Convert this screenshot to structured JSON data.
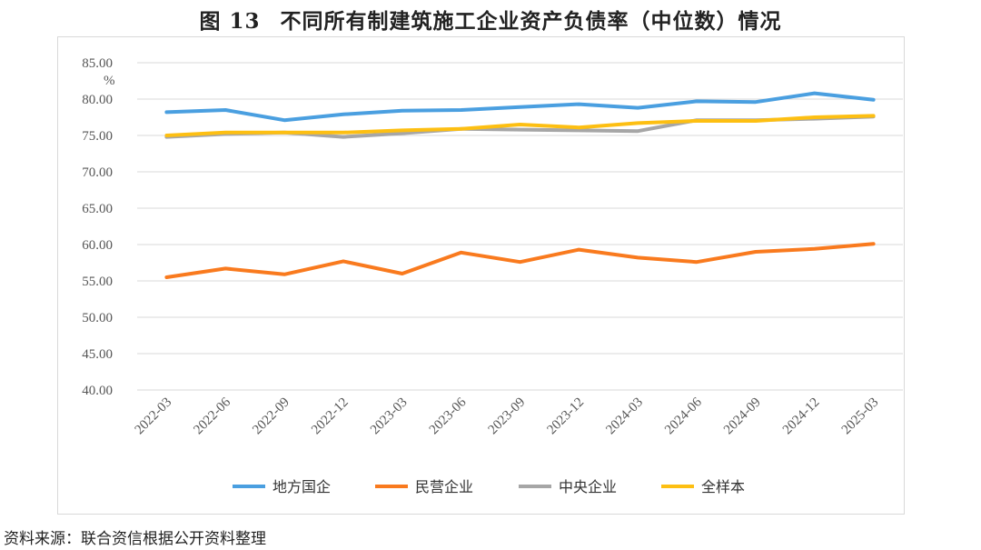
{
  "figure": {
    "number": "图 13",
    "title": "不同所有制建筑施工企业资产负债率（中位数）情况"
  },
  "source": "资料来源：联合资信根据公开资料整理",
  "chart_data": {
    "type": "line",
    "title": "",
    "xlabel": "",
    "ylabel": "%",
    "ylim": [
      40,
      85
    ],
    "yticks": [
      "85.00",
      "80.00",
      "75.00",
      "70.00",
      "65.00",
      "60.00",
      "55.00",
      "50.00",
      "45.00",
      "40.00"
    ],
    "grid": "horizontal",
    "legend": "bottom",
    "categories": [
      "2022-03",
      "2022-06",
      "2022-09",
      "2022-12",
      "2023-03",
      "2023-06",
      "2023-09",
      "2023-12",
      "2024-03",
      "2024-06",
      "2024-09",
      "2024-12",
      "2025-03"
    ],
    "series": [
      {
        "name": "地方国企",
        "color": "#4a9fe0",
        "values": [
          78.2,
          78.5,
          77.1,
          77.9,
          78.4,
          78.5,
          78.9,
          79.3,
          78.8,
          79.7,
          79.6,
          80.8,
          79.9
        ]
      },
      {
        "name": "民营企业",
        "color": "#f97a1e",
        "values": [
          55.5,
          56.7,
          55.9,
          57.7,
          56.0,
          58.9,
          57.6,
          59.3,
          58.2,
          57.6,
          59.0,
          59.4,
          60.1
        ]
      },
      {
        "name": "中央企业",
        "color": "#a6a6a6",
        "values": [
          74.8,
          75.2,
          75.4,
          74.8,
          75.3,
          75.9,
          75.8,
          75.7,
          75.6,
          77.1,
          77.1,
          77.3,
          77.6
        ]
      },
      {
        "name": "全样本",
        "color": "#fdbf12",
        "values": [
          75.0,
          75.4,
          75.4,
          75.4,
          75.7,
          75.9,
          76.5,
          76.1,
          76.7,
          77.0,
          77.0,
          77.5,
          77.7
        ]
      }
    ]
  }
}
